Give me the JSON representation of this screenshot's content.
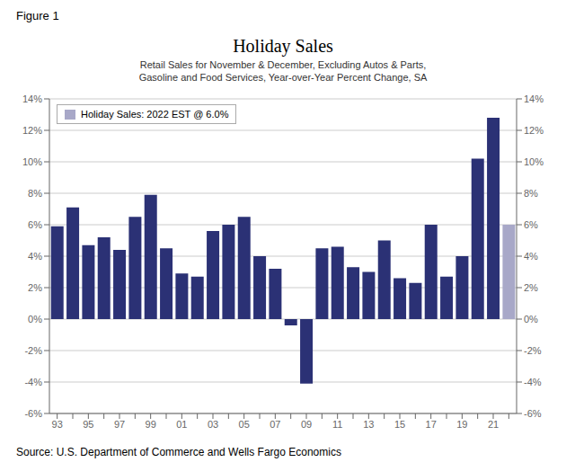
{
  "chart_data": {
    "type": "bar",
    "title": "Holiday Sales",
    "subtitle": [
      "Retail Sales for November & December, Excluding Autos & Parts,",
      "Gasoline and Food Services, Year-over-Year Percent Change, SA"
    ],
    "annotations": [
      "Figure 1",
      "Source: U.S. Department of Commerce and Wells Fargo Economics"
    ],
    "categories": [
      "93",
      null,
      "95",
      null,
      "97",
      null,
      "99",
      null,
      "01",
      null,
      "03",
      null,
      "05",
      null,
      "07",
      null,
      "09",
      null,
      "11",
      null,
      "13",
      null,
      "15",
      null,
      "17",
      null,
      "19",
      null,
      "21",
      null
    ],
    "series": [
      {
        "name": "Holiday Sales: 2022 EST @ 6.0%",
        "color": "#a8a8c8",
        "colors": [
          "#2b3175",
          "#2b3175",
          "#2b3175",
          "#2b3175",
          "#2b3175",
          "#2b3175",
          "#2b3175",
          "#2b3175",
          "#2b3175",
          "#2b3175",
          "#2b3175",
          "#2b3175",
          "#2b3175",
          "#2b3175",
          "#2b3175",
          "#2b3175",
          "#2b3175",
          "#2b3175",
          "#2b3175",
          "#2b3175",
          "#2b3175",
          "#2b3175",
          "#2b3175",
          "#2b3175",
          "#2b3175",
          "#2b3175",
          "#2b3175",
          "#2b3175",
          "#2b3175",
          "#a8a8c8"
        ],
        "values": [
          5.9,
          7.1,
          4.7,
          5.2,
          4.4,
          6.5,
          7.9,
          4.5,
          2.9,
          2.7,
          5.6,
          6.0,
          6.5,
          4.0,
          3.2,
          -0.4,
          -4.1,
          4.5,
          4.6,
          3.3,
          3.0,
          5.0,
          2.6,
          2.3,
          6.0,
          2.7,
          4.0,
          10.2,
          12.8,
          6.0
        ]
      }
    ],
    "ylim": [
      -6,
      14
    ],
    "yticks": [
      {
        "value": -6,
        "label": "-6%"
      },
      {
        "value": -4,
        "label": "-4%"
      },
      {
        "value": -2,
        "label": "-2%"
      },
      {
        "value": 0,
        "label": "0%"
      },
      {
        "value": 2,
        "label": "2%"
      },
      {
        "value": 4,
        "label": "4%"
      },
      {
        "value": 6,
        "label": "6%"
      },
      {
        "value": 8,
        "label": "8%"
      },
      {
        "value": 10,
        "label": "10%"
      },
      {
        "value": 12,
        "label": "12%"
      },
      {
        "value": 14,
        "label": "14%"
      }
    ],
    "y2lim": [
      -6,
      14
    ],
    "y2ticks": [
      {
        "value": -6,
        "label": "-6%"
      },
      {
        "value": -4,
        "label": "-4%"
      },
      {
        "value": -2,
        "label": "-2%"
      },
      {
        "value": 0,
        "label": "0%"
      },
      {
        "value": 2,
        "label": "2%"
      },
      {
        "value": 4,
        "label": "4%"
      },
      {
        "value": 6,
        "label": "6%"
      },
      {
        "value": 8,
        "label": "8%"
      },
      {
        "value": 10,
        "label": "10%"
      },
      {
        "value": 12,
        "label": "12%"
      },
      {
        "value": 14,
        "label": "14%"
      }
    ],
    "grid": true,
    "legend": "upper left"
  }
}
